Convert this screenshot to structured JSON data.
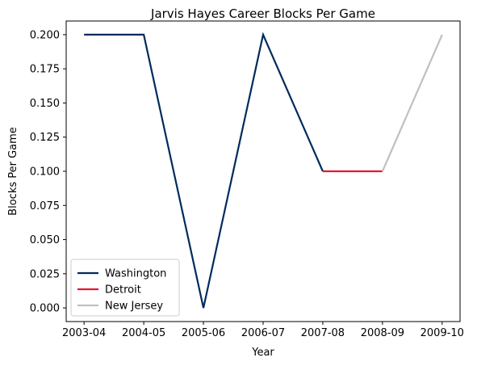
{
  "chart_data": {
    "type": "line",
    "title": "Jarvis Hayes Career Blocks Per Game",
    "xlabel": "Year",
    "ylabel": "Blocks Per Game",
    "categories": [
      "2003-04",
      "2004-05",
      "2005-06",
      "2006-07",
      "2007-08",
      "2008-09",
      "2009-10"
    ],
    "ylim": [
      -0.01,
      0.21
    ],
    "yticks": [
      "0.000",
      "0.025",
      "0.050",
      "0.075",
      "0.100",
      "0.125",
      "0.150",
      "0.175",
      "0.200"
    ],
    "grid": false,
    "legend_position": "lower-left",
    "series": [
      {
        "name": "Washington",
        "color": "#002B5C",
        "x": [
          "2003-04",
          "2004-05",
          "2005-06",
          "2006-07",
          "2007-08"
        ],
        "values": [
          0.2,
          0.2,
          0.0,
          0.2,
          0.1
        ]
      },
      {
        "name": "Detroit",
        "color": "#E31837",
        "x": [
          "2007-08",
          "2008-09"
        ],
        "values": [
          0.1,
          0.1
        ]
      },
      {
        "name": "New Jersey",
        "color": "#C0C0C0",
        "x": [
          "2008-09",
          "2009-10"
        ],
        "values": [
          0.1,
          0.2
        ]
      }
    ]
  }
}
